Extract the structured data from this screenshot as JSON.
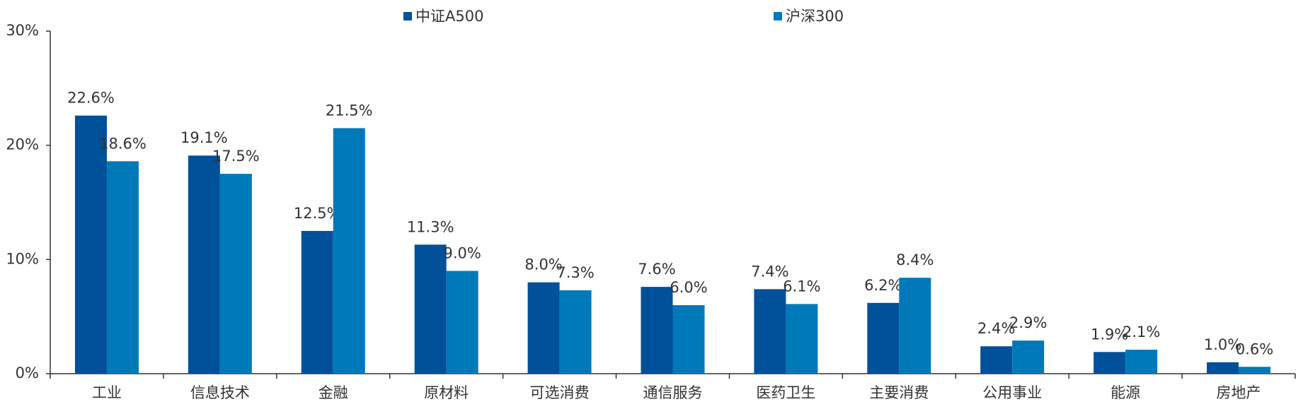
{
  "chart_data": {
    "type": "bar",
    "categories": [
      "工业",
      "信息技术",
      "金融",
      "原材料",
      "可选消费",
      "通信服务",
      "医药卫生",
      "主要消费",
      "公用事业",
      "能源",
      "房地产"
    ],
    "series": [
      {
        "name": "中证A500",
        "color": "#00509a",
        "values": [
          22.6,
          19.1,
          12.5,
          11.3,
          8.0,
          7.6,
          7.4,
          6.2,
          2.4,
          1.9,
          1.0
        ],
        "value_labels": [
          "22.6%",
          "19.1%",
          "12.5%",
          "11.3%",
          "8.0%",
          "7.6%",
          "7.4%",
          "6.2%",
          "2.4%",
          "1.9%",
          "1.0%"
        ]
      },
      {
        "name": "沪深300",
        "color": "#0079b8",
        "values": [
          18.6,
          17.5,
          21.5,
          9.0,
          7.3,
          6.0,
          6.1,
          8.4,
          2.9,
          2.1,
          0.6
        ],
        "value_labels": [
          "18.6%",
          "17.5%",
          "21.5%",
          "9.0%",
          "7.3%",
          "6.0%",
          "6.1%",
          "8.4%",
          "2.9%",
          "2.1%",
          "0.6%"
        ]
      }
    ],
    "ylim": [
      0,
      30
    ],
    "yticks": [
      {
        "value": 0,
        "label": "0%"
      },
      {
        "value": 10,
        "label": "10%"
      },
      {
        "value": 20,
        "label": "20%"
      },
      {
        "value": 30,
        "label": "30%"
      }
    ],
    "legend": "top"
  }
}
